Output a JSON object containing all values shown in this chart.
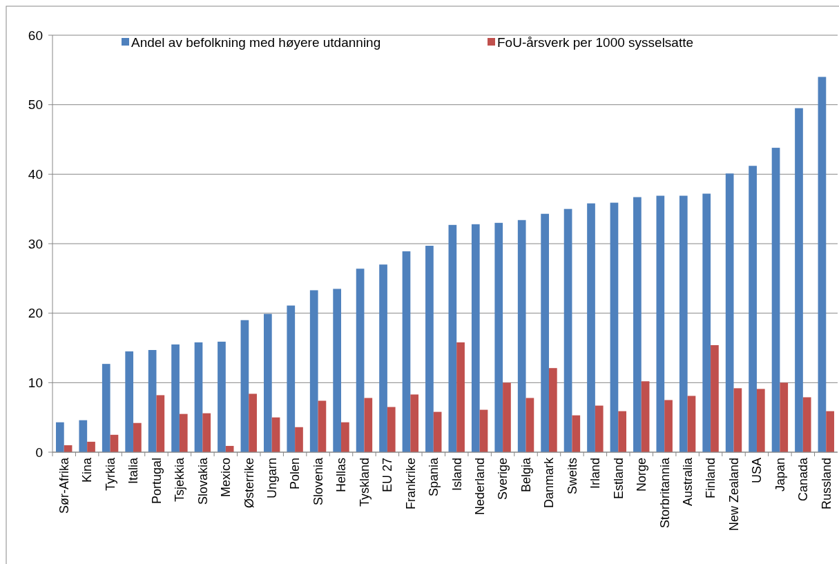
{
  "chart_data": {
    "type": "bar",
    "categories": [
      "Sør-Afrika",
      "Kina",
      "Tyrkia",
      "Italia",
      "Portugal",
      "Tsjekkia",
      "Slovakia",
      "Mexico",
      "Østerrike",
      "Ungarn",
      "Polen",
      "Slovenia",
      "Hellas",
      "Tyskland",
      "EU 27",
      "Frankrike",
      "Spania",
      "Island",
      "Nederland",
      "Sverige",
      "Belgia",
      "Danmark",
      "Sweits",
      "Irland",
      "Estland",
      "Norge",
      "Storbritannia",
      "Australia",
      "Finland",
      "New Zealand",
      "USA",
      "Japan",
      "Canada",
      "Russland"
    ],
    "series": [
      {
        "name": "Andel av befolkning med høyere utdanning",
        "color": "#4f81bd",
        "values": [
          4.3,
          4.6,
          12.7,
          14.5,
          14.7,
          15.5,
          15.8,
          15.9,
          19.0,
          19.9,
          21.1,
          23.3,
          23.5,
          26.4,
          27.0,
          28.9,
          29.7,
          32.7,
          32.8,
          33.0,
          33.4,
          34.3,
          35.0,
          35.8,
          35.9,
          36.7,
          36.9,
          36.9,
          37.2,
          40.1,
          41.2,
          43.8,
          49.5,
          54.0
        ]
      },
      {
        "name": "FoU-årsverk per 1000 sysselsatte",
        "color": "#c0504d",
        "values": [
          1.0,
          1.5,
          2.5,
          4.2,
          8.2,
          5.5,
          5.6,
          0.9,
          8.4,
          5.0,
          3.6,
          7.4,
          4.3,
          7.8,
          6.5,
          8.3,
          5.8,
          15.8,
          6.1,
          10.0,
          7.8,
          12.1,
          5.3,
          6.7,
          5.9,
          10.2,
          7.5,
          8.1,
          15.4,
          9.2,
          9.1,
          10.0,
          7.9,
          5.9
        ]
      }
    ],
    "ylim": [
      0,
      60
    ],
    "yticks": [
      0,
      10,
      20,
      30,
      40,
      50,
      60
    ],
    "grid": "y",
    "legend": "top"
  }
}
